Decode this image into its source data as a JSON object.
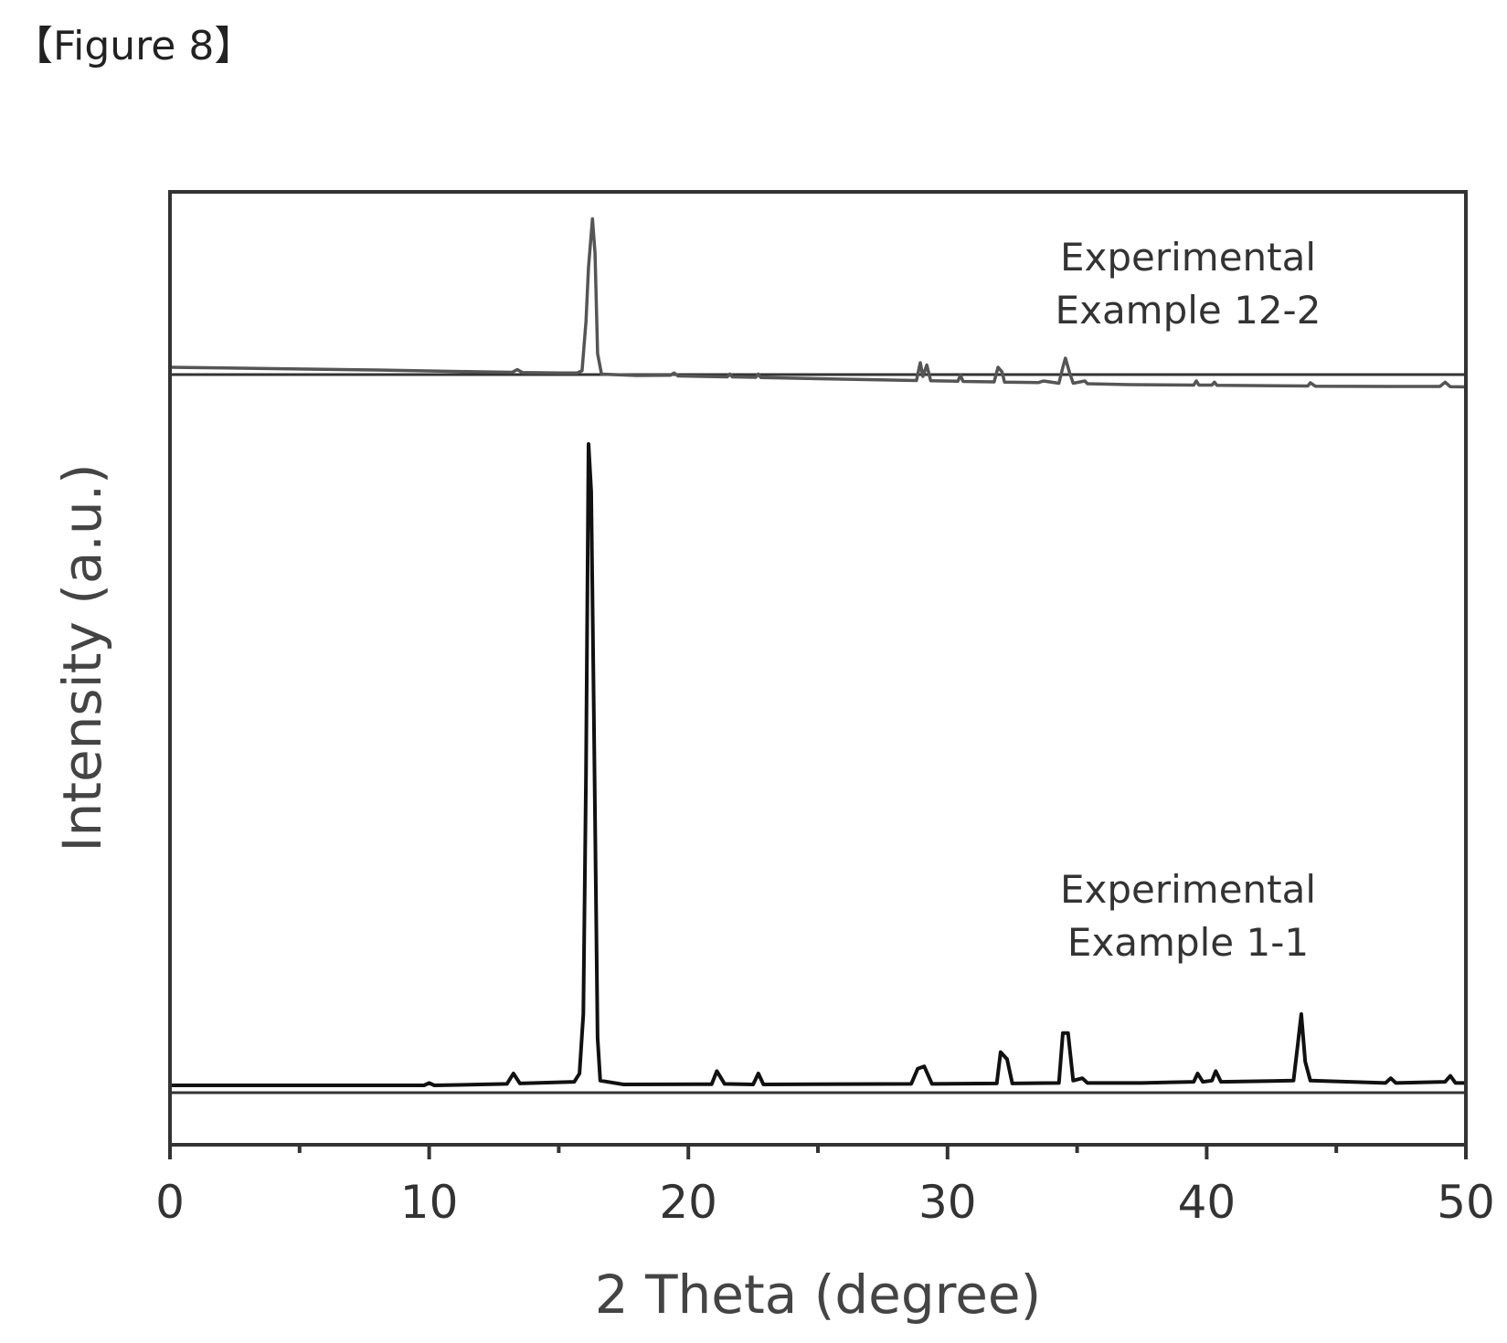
{
  "figure_label": "【Figure 8】",
  "chart_data": {
    "type": "line",
    "xlabel": "2 Theta (degree)",
    "ylabel": "Intensity (a.u.)",
    "xlim": [
      0,
      50
    ],
    "x_ticks": [
      0,
      10,
      20,
      30,
      40,
      50
    ],
    "grid": false,
    "y_ticks_shown": false,
    "legend": "none; series labeled inline at right",
    "series": [
      {
        "label_lines": [
          "Experimental",
          "Example 12-2"
        ],
        "color": "#555555",
        "baseline": 0,
        "points": [
          [
            0,
            0
          ],
          [
            4,
            -0.6
          ],
          [
            8,
            -1.2
          ],
          [
            12,
            -2
          ],
          [
            13.2,
            -2.2
          ],
          [
            13.4,
            -1
          ],
          [
            13.6,
            -2.3
          ],
          [
            15,
            -2.5
          ],
          [
            15.7,
            -2.5
          ],
          [
            15.9,
            -1.5
          ],
          [
            16.05,
            20
          ],
          [
            16.15,
            44
          ],
          [
            16.3,
            65
          ],
          [
            16.4,
            50
          ],
          [
            16.5,
            6
          ],
          [
            16.65,
            -3
          ],
          [
            18,
            -3.6
          ],
          [
            19.3,
            -3.5
          ],
          [
            19.45,
            -2.5
          ],
          [
            19.6,
            -3.8
          ],
          [
            21.5,
            -4.2
          ],
          [
            21.6,
            -3
          ],
          [
            21.7,
            -4.2
          ],
          [
            22.6,
            -4.4
          ],
          [
            22.7,
            -3
          ],
          [
            22.8,
            -4.5
          ],
          [
            25,
            -5
          ],
          [
            28.8,
            -5.8
          ],
          [
            28.95,
            2
          ],
          [
            29.05,
            -4
          ],
          [
            29.2,
            1
          ],
          [
            29.35,
            -5.9
          ],
          [
            30.4,
            -6.1
          ],
          [
            30.5,
            -3.5
          ],
          [
            30.6,
            -6.2
          ],
          [
            31.8,
            -6.4
          ],
          [
            31.95,
            0
          ],
          [
            32.1,
            -2
          ],
          [
            32.2,
            -6.5
          ],
          [
            33.5,
            -6.7
          ],
          [
            33.7,
            -6
          ],
          [
            34.3,
            -7
          ],
          [
            34.45,
            0
          ],
          [
            34.55,
            4
          ],
          [
            34.7,
            -2
          ],
          [
            34.85,
            -7
          ],
          [
            35.3,
            -6
          ],
          [
            35.4,
            -7.2
          ],
          [
            37,
            -7.6
          ],
          [
            39.5,
            -7.8
          ],
          [
            39.6,
            -6
          ],
          [
            39.7,
            -7.8
          ],
          [
            40.2,
            -7.8
          ],
          [
            40.3,
            -6.5
          ],
          [
            40.4,
            -7.9
          ],
          [
            43.9,
            -8.2
          ],
          [
            44,
            -6.8
          ],
          [
            44.2,
            -8.3
          ],
          [
            47,
            -8.4
          ],
          [
            49,
            -8.4
          ],
          [
            49.2,
            -6.5
          ],
          [
            49.4,
            -8.5
          ],
          [
            50,
            -8.6
          ]
        ]
      },
      {
        "label_lines": [
          "Experimental",
          "Example 1-1"
        ],
        "color": "#111111",
        "baseline": 0,
        "points": [
          [
            0,
            0
          ],
          [
            9.8,
            0
          ],
          [
            10,
            1
          ],
          [
            10.2,
            0
          ],
          [
            13,
            0.6
          ],
          [
            13.25,
            5
          ],
          [
            13.5,
            0.8
          ],
          [
            15.6,
            1.5
          ],
          [
            15.8,
            5
          ],
          [
            15.95,
            30
          ],
          [
            16.05,
            130
          ],
          [
            16.15,
            270
          ],
          [
            16.25,
            250
          ],
          [
            16.35,
            160
          ],
          [
            16.5,
            20
          ],
          [
            16.6,
            2
          ],
          [
            17.5,
            0.4
          ],
          [
            20.9,
            0.5
          ],
          [
            21.1,
            6
          ],
          [
            21.4,
            0.6
          ],
          [
            22.5,
            0.4
          ],
          [
            22.7,
            5
          ],
          [
            22.9,
            0.4
          ],
          [
            28.6,
            0.6
          ],
          [
            28.85,
            7
          ],
          [
            29.1,
            8
          ],
          [
            29.4,
            0.6
          ],
          [
            31.9,
            0.8
          ],
          [
            32.05,
            14
          ],
          [
            32.3,
            11
          ],
          [
            32.5,
            0.8
          ],
          [
            34.3,
            1
          ],
          [
            34.45,
            22
          ],
          [
            34.65,
            22
          ],
          [
            34.85,
            2
          ],
          [
            35.2,
            3
          ],
          [
            35.4,
            1
          ],
          [
            37.5,
            1
          ],
          [
            39.5,
            1.5
          ],
          [
            39.65,
            5
          ],
          [
            39.85,
            1.5
          ],
          [
            40.2,
            2
          ],
          [
            40.35,
            6
          ],
          [
            40.55,
            1.5
          ],
          [
            43.35,
            2
          ],
          [
            43.5,
            16
          ],
          [
            43.65,
            30
          ],
          [
            43.8,
            10
          ],
          [
            44,
            2
          ],
          [
            46.9,
            1
          ],
          [
            47.1,
            3
          ],
          [
            47.3,
            1
          ],
          [
            49.2,
            1.5
          ],
          [
            49.4,
            4
          ],
          [
            49.6,
            1
          ],
          [
            50,
            1
          ]
        ]
      }
    ]
  }
}
